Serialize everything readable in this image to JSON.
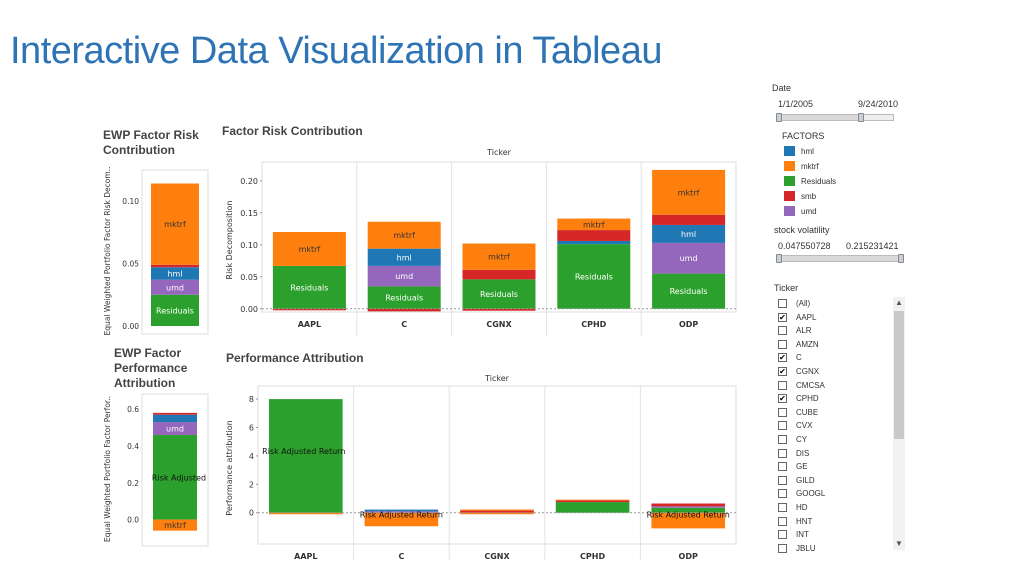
{
  "slide": {
    "title": "Interactive Data Visualization in Tableau"
  },
  "colors": {
    "hml": "#1f77b4",
    "mktrf": "#ff7f0e",
    "Residuals": "#2ca02c",
    "smb": "#d62728",
    "umd": "#9467bd",
    "axis": "#888888",
    "zero_line": "#999999"
  },
  "ewp_factor_risk": {
    "title": "EWP Factor Risk Contribution",
    "ylabel": "Equal Weighted Portfolio Factor Risk Decom..",
    "ticks": [
      "0.10",
      "0.05",
      "0.00"
    ],
    "labels": {
      "mktrf": "mktrf",
      "hml": "hml",
      "umd": "umd",
      "Residuals": "Residuals"
    }
  },
  "ewp_perf": {
    "title_lines": [
      "EWP Factor",
      "Performance",
      "Attribution"
    ],
    "ylabel": "Equal Weighted Portfolio Factor Perfor..",
    "ticks": [
      "0.6",
      "0.4",
      "0.2",
      "0.0"
    ],
    "labels": {
      "umd": "umd",
      "risk_adjusted": "Risk Adjusted",
      "mktrf": "mktrf"
    }
  },
  "factor_risk": {
    "title": "Factor Risk Contribution",
    "header": "Ticker",
    "ylabel": "Risk Decomposition",
    "ticks": [
      "0.20",
      "0.15",
      "0.10",
      "0.05",
      "0.00"
    ],
    "labels": {
      "mktrf": "mktrf",
      "hml": "hml",
      "umd": "umd",
      "Residuals": "Residuals",
      "smb": "smb"
    }
  },
  "perf_attr": {
    "title": "Performance Attribution",
    "header": "Ticker",
    "ylabel": "Performance attribution",
    "ticks": [
      "8",
      "6",
      "4",
      "2",
      "0"
    ],
    "labels": {
      "risk_adjusted_return": "Risk Adjusted Return"
    }
  },
  "chart_data": [
    {
      "type": "bar",
      "stacked": true,
      "title": "Factor Risk Contribution",
      "header": "Ticker",
      "ylabel": "Risk Decomposition",
      "categories": [
        "AAPL",
        "C",
        "CGNX",
        "CPHD",
        "ODP"
      ],
      "ylim": [
        -0.005,
        0.22
      ],
      "series": [
        {
          "name": "Residuals",
          "values": [
            0.067,
            0.035,
            0.046,
            0.101,
            0.055
          ]
        },
        {
          "name": "umd",
          "values": [
            0.0,
            0.032,
            0.0,
            0.0,
            0.048
          ]
        },
        {
          "name": "hml",
          "values": [
            0.0,
            0.027,
            0.0,
            0.005,
            0.028
          ]
        },
        {
          "name": "smb",
          "values": [
            0.0,
            0.0,
            0.015,
            0.017,
            0.016
          ]
        },
        {
          "name": "mktrf",
          "values": [
            0.053,
            0.042,
            0.041,
            0.018,
            0.07
          ]
        }
      ],
      "negative": {
        "name": "smb",
        "values": [
          -0.002,
          -0.004,
          -0.003,
          0.0,
          0.0
        ]
      },
      "grid": false
    },
    {
      "type": "bar",
      "stacked": true,
      "title": "Performance Attribution",
      "header": "Ticker",
      "ylabel": "Performance attribution",
      "categories": [
        "AAPL",
        "C",
        "CGNX",
        "CPHD",
        "ODP"
      ],
      "ylim": [
        -2.2,
        8.5
      ],
      "series": [
        {
          "name": "Residuals",
          "values": [
            8.0,
            0.0,
            0.0,
            0.75,
            0.35
          ]
        },
        {
          "name": "umd",
          "values": [
            0.0,
            0.1,
            0.0,
            0.0,
            0.1
          ]
        },
        {
          "name": "hml",
          "values": [
            0.0,
            0.12,
            0.0,
            0.0,
            0.0
          ]
        },
        {
          "name": "smb",
          "values": [
            0.0,
            0.0,
            0.15,
            0.12,
            0.2
          ]
        },
        {
          "name": "mktrf",
          "values": [
            0.0,
            0.0,
            0.08,
            0.05,
            0.0
          ]
        }
      ],
      "negative": {
        "name": "mktrf",
        "values": [
          -0.1,
          -0.95,
          -0.05,
          0.0,
          -1.1
        ]
      },
      "grid": false
    },
    {
      "type": "bar",
      "stacked": true,
      "title": "EWP Factor Risk Contribution",
      "ylabel": "Equal Weighted Portfolio Factor Risk Decom..",
      "categories": [
        ""
      ],
      "ylim": [
        0.0,
        0.12
      ],
      "series": [
        {
          "name": "Residuals",
          "values": [
            0.025
          ]
        },
        {
          "name": "umd",
          "values": [
            0.012
          ]
        },
        {
          "name": "hml",
          "values": [
            0.01
          ]
        },
        {
          "name": "smb",
          "values": [
            0.002
          ]
        },
        {
          "name": "mktrf",
          "values": [
            0.065
          ]
        }
      ],
      "grid": false
    },
    {
      "type": "bar",
      "stacked": true,
      "title": "EWP Factor Performance Attribution",
      "ylabel": "Equal Weighted Portfolio Factor Perfor..",
      "categories": [
        ""
      ],
      "ylim": [
        -0.1,
        0.65
      ],
      "series": [
        {
          "name": "Residuals",
          "values": [
            0.46
          ]
        },
        {
          "name": "umd",
          "values": [
            0.07
          ]
        },
        {
          "name": "hml",
          "values": [
            0.04
          ]
        },
        {
          "name": "smb",
          "values": [
            0.01
          ]
        }
      ],
      "negative": {
        "name": "mktrf",
        "values": [
          -0.06
        ]
      },
      "grid": false
    }
  ],
  "controls": {
    "date": {
      "label": "Date",
      "start": "1/1/2005",
      "end": "9/24/2010",
      "range_fraction": [
        0.0,
        0.72
      ]
    },
    "factors": {
      "label": "FACTORS",
      "items": [
        {
          "name": "hml",
          "color": "#1f77b4"
        },
        {
          "name": "mktrf",
          "color": "#ff7f0e"
        },
        {
          "name": "Residuals",
          "color": "#2ca02c"
        },
        {
          "name": "smb",
          "color": "#d62728"
        },
        {
          "name": "umd",
          "color": "#9467bd"
        }
      ]
    },
    "volatility": {
      "label": "stock volatility",
      "min": "0.047550728",
      "max": "0.215231421",
      "range_fraction": [
        0.0,
        1.0
      ]
    },
    "ticker": {
      "label": "Ticker",
      "items": [
        {
          "name": "(All)",
          "checked": false
        },
        {
          "name": "AAPL",
          "checked": true
        },
        {
          "name": "ALR",
          "checked": false
        },
        {
          "name": "AMZN",
          "checked": false
        },
        {
          "name": "C",
          "checked": true
        },
        {
          "name": "CGNX",
          "checked": true
        },
        {
          "name": "CMCSA",
          "checked": false
        },
        {
          "name": "CPHD",
          "checked": true
        },
        {
          "name": "CUBE",
          "checked": false
        },
        {
          "name": "CVX",
          "checked": false
        },
        {
          "name": "CY",
          "checked": false
        },
        {
          "name": "DIS",
          "checked": false
        },
        {
          "name": "GE",
          "checked": false
        },
        {
          "name": "GILD",
          "checked": false
        },
        {
          "name": "GOOGL",
          "checked": false
        },
        {
          "name": "HD",
          "checked": false
        },
        {
          "name": "HNT",
          "checked": false
        },
        {
          "name": "INT",
          "checked": false
        },
        {
          "name": "JBLU",
          "checked": false
        }
      ]
    }
  }
}
